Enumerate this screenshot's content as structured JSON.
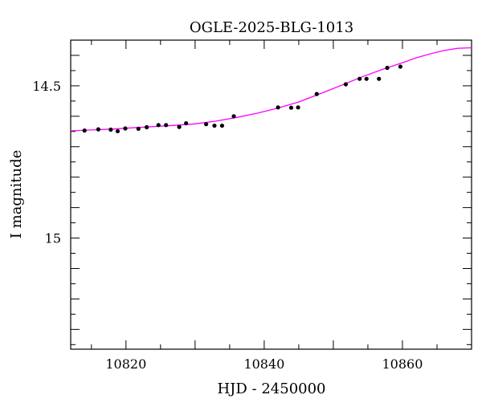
{
  "chart_data": {
    "type": "scatter",
    "title": "OGLE-2025-BLG-1013",
    "xlabel": "HJD - 2450000",
    "ylabel": "I magnitude",
    "xlim": [
      10812,
      10870
    ],
    "ylim": [
      14.35,
      15.365
    ],
    "y_inverted": true,
    "grid": false,
    "x_ticks": [
      10820,
      10840,
      10860
    ],
    "x_tick_labels": [
      "10820",
      "10840",
      "10860"
    ],
    "y_ticks": [
      14.5,
      15
    ],
    "y_tick_labels": [
      "14.5",
      "15"
    ],
    "colors": {
      "points": "#000000",
      "model": "#ff00ff"
    },
    "points": [
      {
        "x": 10814.0,
        "y": 14.647
      },
      {
        "x": 10816.0,
        "y": 14.643
      },
      {
        "x": 10817.8,
        "y": 14.644
      },
      {
        "x": 10818.8,
        "y": 14.649
      },
      {
        "x": 10819.9,
        "y": 14.64
      },
      {
        "x": 10821.8,
        "y": 14.641
      },
      {
        "x": 10823.0,
        "y": 14.636
      },
      {
        "x": 10824.7,
        "y": 14.629
      },
      {
        "x": 10825.8,
        "y": 14.629
      },
      {
        "x": 10827.7,
        "y": 14.635
      },
      {
        "x": 10828.7,
        "y": 14.623
      },
      {
        "x": 10831.6,
        "y": 14.626
      },
      {
        "x": 10832.8,
        "y": 14.631
      },
      {
        "x": 10833.9,
        "y": 14.631
      },
      {
        "x": 10835.6,
        "y": 14.6
      },
      {
        "x": 10842.0,
        "y": 14.571
      },
      {
        "x": 10843.9,
        "y": 14.572
      },
      {
        "x": 10844.9,
        "y": 14.571
      },
      {
        "x": 10847.6,
        "y": 14.527
      },
      {
        "x": 10851.8,
        "y": 14.495
      },
      {
        "x": 10853.8,
        "y": 14.477
      },
      {
        "x": 10854.8,
        "y": 14.477
      },
      {
        "x": 10856.6,
        "y": 14.477
      },
      {
        "x": 10857.8,
        "y": 14.441
      },
      {
        "x": 10859.7,
        "y": 14.437
      }
    ],
    "model": {
      "x": [
        10812,
        10815,
        10818,
        10821,
        10824,
        10827,
        10830,
        10833,
        10836,
        10839,
        10842,
        10845,
        10848,
        10851,
        10854,
        10857,
        10860,
        10862,
        10864,
        10866,
        10868,
        10870
      ],
      "y": [
        14.648,
        14.645,
        14.642,
        14.638,
        14.634,
        14.63,
        14.625,
        14.616,
        14.604,
        14.59,
        14.573,
        14.553,
        14.527,
        14.5,
        14.472,
        14.447,
        14.424,
        14.408,
        14.395,
        14.384,
        14.377,
        14.375
      ]
    }
  }
}
